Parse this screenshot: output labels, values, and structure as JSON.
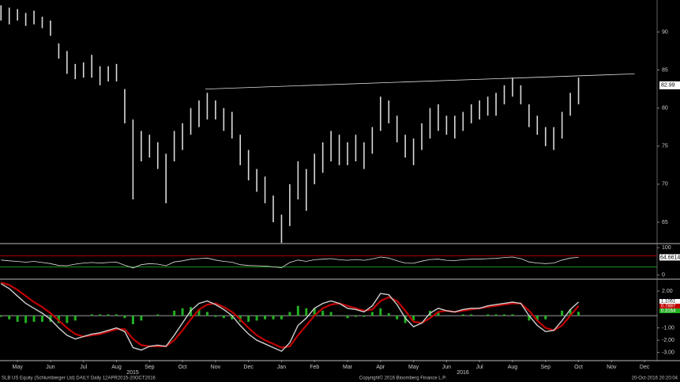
{
  "chart_data": [
    {
      "type": "ohlc",
      "x": [
        3.5,
        3.75,
        4,
        4.25,
        4.5,
        4.75,
        5,
        5.25,
        5.5,
        5.75,
        6,
        6.25,
        6.5,
        6.75,
        7,
        7.25,
        7.5,
        7.75,
        8,
        8.25,
        8.5,
        8.75,
        9,
        9.25,
        9.5,
        9.75,
        10,
        10.25,
        10.5,
        10.75,
        11,
        11.25,
        11.5,
        11.75,
        12,
        12.25,
        12.5,
        12.75,
        13,
        13.25,
        13.5,
        13.75,
        14,
        14.25,
        14.5,
        14.75,
        15,
        15.25,
        15.5,
        15.75,
        16,
        16.25,
        16.5,
        16.75,
        17,
        17.25,
        17.5,
        17.75,
        18,
        18.25,
        18.5,
        18.75,
        19,
        19.25,
        19.5,
        19.75,
        20,
        20.25,
        20.5,
        20.75,
        21
      ],
      "high": [
        93.5,
        93.2,
        93,
        92.5,
        92.8,
        92,
        91.5,
        88.5,
        87.5,
        85.8,
        86,
        87,
        85.5,
        85.5,
        85.8,
        82.5,
        78.5,
        77,
        76.5,
        75.5,
        74,
        77,
        78,
        80,
        81,
        82,
        81,
        80,
        79.5,
        76.5,
        74.5,
        72,
        71,
        68.5,
        66,
        70,
        73,
        72,
        74,
        75.5,
        77,
        76.5,
        75.5,
        76.5,
        75.5,
        77.5,
        81.5,
        81,
        79,
        76.5,
        76,
        78,
        80,
        80.5,
        79,
        79,
        79.5,
        80.5,
        81,
        81.5,
        82,
        83,
        84,
        83,
        80.5,
        79,
        77.5,
        77.5,
        79.5,
        82,
        84
      ],
      "low": [
        91.5,
        91,
        91.5,
        90.8,
        91,
        90.5,
        89.5,
        86.5,
        84.5,
        83.8,
        84,
        84,
        83,
        83.5,
        83.5,
        78,
        68,
        73,
        73.5,
        72,
        67.5,
        73,
        74.5,
        76.5,
        77.5,
        78.5,
        78.5,
        77,
        76,
        72.5,
        70.5,
        69,
        67.5,
        65,
        62.3,
        64.5,
        68,
        66.5,
        70,
        71.5,
        73,
        72.5,
        72.5,
        73,
        72,
        74,
        77,
        78,
        75.5,
        73.5,
        72.5,
        74.5,
        76,
        77,
        76.5,
        76,
        77,
        78,
        78.5,
        79,
        79,
        80.5,
        81.5,
        80.5,
        77.5,
        76.5,
        75,
        74.5,
        76,
        79,
        80.5
      ],
      "color": "#d9d9d9",
      "last_price": 82.99,
      "trendline": {
        "x": [
          9.69,
          22.7
        ],
        "y": [
          82.5,
          84.5
        ]
      },
      "xlim": [
        3.47,
        23.38
      ],
      "xticks": [
        {
          "value": 4,
          "label": "May"
        },
        {
          "value": 5,
          "label": "Jun"
        },
        {
          "value": 6,
          "label": "Jul"
        },
        {
          "value": 7,
          "label": "Aug"
        },
        {
          "value": 8,
          "label": "Sep"
        },
        {
          "value": 9,
          "label": "Oct"
        },
        {
          "value": 10,
          "label": "Nov"
        },
        {
          "value": 11,
          "label": "Dec"
        },
        {
          "value": 12,
          "label": "Jan"
        },
        {
          "value": 13,
          "label": "Feb"
        },
        {
          "value": 14,
          "label": "Mar"
        },
        {
          "value": 15,
          "label": "Apr"
        },
        {
          "value": 16,
          "label": "May"
        },
        {
          "value": 17,
          "label": "Jun"
        },
        {
          "value": 18,
          "label": "Jul"
        },
        {
          "value": 19,
          "label": "Aug"
        },
        {
          "value": 20,
          "label": "Sep"
        },
        {
          "value": 21,
          "label": "Oct"
        },
        {
          "value": 22,
          "label": "Nov"
        },
        {
          "value": 23,
          "label": "Dec"
        }
      ],
      "years": [
        "2015",
        "2016"
      ],
      "ylim": [
        62.3,
        94.2
      ],
      "yticks": [
        65,
        70,
        75,
        80,
        85,
        90
      ]
    },
    {
      "type": "line",
      "values": [
        55,
        52,
        50,
        47,
        50,
        46,
        42,
        35,
        34,
        40,
        44,
        46,
        44,
        46,
        47,
        36,
        26,
        38,
        42,
        40,
        34,
        48,
        52,
        58,
        60,
        62,
        55,
        50,
        47,
        38,
        35,
        34,
        33,
        30,
        27,
        46,
        55,
        50,
        56,
        58,
        60,
        56,
        54,
        57,
        54,
        59,
        66,
        62,
        52,
        44,
        43,
        51,
        57,
        58,
        54,
        53,
        56,
        58,
        58,
        60,
        61,
        64,
        66,
        60,
        48,
        44,
        42,
        44,
        55,
        62,
        64.6614
      ],
      "color": "#e0e0e0",
      "levels": [
        {
          "value": 70,
          "color": "#c00000"
        },
        {
          "value": 30,
          "color": "#1fa31f"
        }
      ],
      "ylim": [
        -12,
        112
      ],
      "yticks": [
        100,
        0
      ]
    },
    {
      "type": "macd",
      "series": [
        {
          "values": [
            2.6,
            2.2,
            1.6,
            1,
            0.6,
            0.2,
            -0.3,
            -1,
            -1.6,
            -1.9,
            -1.7,
            -1.5,
            -1.4,
            -1.2,
            -1,
            -1.3,
            -2.6,
            -2.8,
            -2.5,
            -2.4,
            -2.5,
            -1.6,
            -0.6,
            0.4,
            1,
            1.2,
            0.9,
            0.5,
            0,
            -0.8,
            -1.5,
            -2,
            -2.3,
            -2.6,
            -2.9,
            -2.2,
            -0.8,
            -0.2,
            0.6,
            1,
            1.2,
            1,
            0.6,
            0.5,
            0.3,
            0.8,
            1.8,
            1.7,
            0.9,
            -0.2,
            -0.9,
            -0.6,
            0.2,
            0.6,
            0.4,
            0.3,
            0.5,
            0.6,
            0.6,
            0.8,
            0.9,
            1,
            1.1,
            1,
            0,
            -0.8,
            -1.3,
            -1.2,
            -0.4,
            0.5,
            1.1051
          ],
          "color": "#d0d0d0"
        },
        {
          "values": [
            2.7,
            2.5,
            2.1,
            1.6,
            1.1,
            0.7,
            0.2,
            -0.4,
            -1,
            -1.5,
            -1.7,
            -1.6,
            -1.5,
            -1.3,
            -1.1,
            -1.1,
            -1.9,
            -2.4,
            -2.5,
            -2.5,
            -2.5,
            -2,
            -1.2,
            -0.3,
            0.5,
            0.9,
            1,
            0.7,
            0.3,
            -0.3,
            -1,
            -1.6,
            -2,
            -2.3,
            -2.6,
            -2.5,
            -1.6,
            -0.8,
            0,
            0.6,
            0.9,
            1,
            0.8,
            0.6,
            0.4,
            0.5,
            1.2,
            1.5,
            1.2,
            0.4,
            -0.5,
            -0.6,
            -0.2,
            0.3,
            0.4,
            0.3,
            0.4,
            0.5,
            0.6,
            0.7,
            0.8,
            0.9,
            1,
            1,
            0.4,
            -0.4,
            -1,
            -1.2,
            -0.8,
            0,
            0.7887
          ],
          "color": "#c00000"
        }
      ],
      "histogram": {
        "values": [
          -0.1,
          -0.3,
          -0.5,
          -0.6,
          -0.5,
          -0.5,
          -0.5,
          -0.6,
          -0.6,
          -0.4,
          0,
          0.1,
          0.1,
          0.1,
          0.1,
          -0.2,
          -0.7,
          -0.4,
          0,
          0.1,
          0,
          0.4,
          0.6,
          0.7,
          0.5,
          0.3,
          -0.1,
          -0.2,
          -0.3,
          -0.5,
          -0.5,
          -0.4,
          -0.3,
          -0.3,
          -0.3,
          0.3,
          0.8,
          0.6,
          0.6,
          0.4,
          0.3,
          0,
          -0.2,
          -0.1,
          -0.1,
          0.3,
          0.6,
          0.2,
          -0.3,
          -0.6,
          -0.4,
          0,
          0.4,
          0.3,
          0,
          0,
          0.1,
          0.1,
          0,
          0.1,
          0.1,
          0.1,
          0.1,
          0,
          -0.4,
          -0.4,
          -0.3,
          0,
          0.4,
          0.5,
          0.3164
        ],
        "color": "#22b022"
      },
      "ylim": [
        -3.6,
        2.84
      ],
      "yticks": [
        {
          "value": 2,
          "label": "2.00"
        },
        {
          "value": -1,
          "label": "-1.00"
        },
        {
          "value": -2,
          "label": "-2.00"
        },
        {
          "value": -3,
          "label": "-3.00"
        }
      ]
    }
  ],
  "footer": {
    "left": "SLB US Equity (Schlumberger Ltd) DAILY  Daily 12APR2015-20OCT2016",
    "center": "Copyright© 2016 Bloomberg Finance L.P.",
    "right": "20-Oct-2016 20:20:04"
  }
}
